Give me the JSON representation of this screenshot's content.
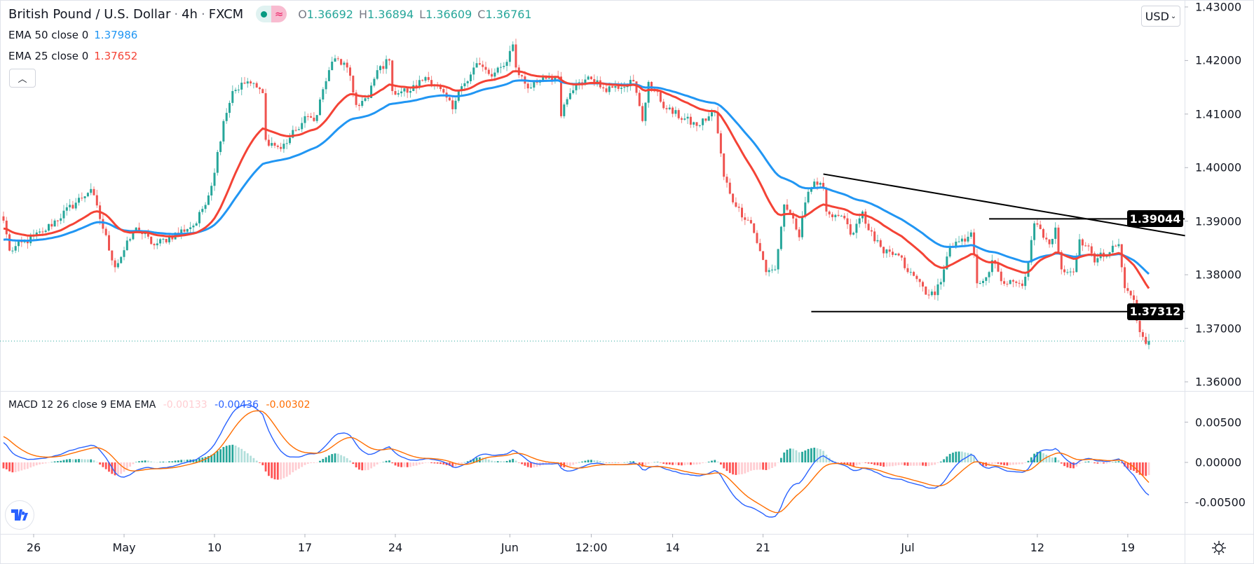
{
  "header": {
    "symbol": "British Pound / U.S. Dollar",
    "interval": "4h",
    "exchange": "FXCM",
    "ohlc": {
      "o_label": "O",
      "o": "1.36692",
      "h_label": "H",
      "h": "1.36894",
      "l_label": "L",
      "l": "1.36609",
      "c_label": "C",
      "c": "1.36761"
    }
  },
  "indicators": {
    "ema50": {
      "label": "EMA 50 close 0",
      "value": "1.37986",
      "color": "#2196f3"
    },
    "ema25": {
      "label": "EMA 25 close 0",
      "value": "1.37652",
      "color": "#f44336"
    },
    "macd": {
      "label": "MACD 12 26 close 9 EMA EMA",
      "hist": "-0.00133",
      "macd": "-0.00436",
      "signal": "-0.00302",
      "hist_color": "#ffcdd2",
      "macd_color": "#2962ff",
      "signal_color": "#ff6d00"
    }
  },
  "colors": {
    "up": "#26a69a",
    "down": "#ef5350",
    "hist_up": "#26a69a",
    "hist_up_fade": "#b2dfdb",
    "hist_dn": "#ff5252",
    "hist_dn_fade": "#ffcdd2"
  },
  "price_axis": {
    "currency": "USD",
    "labels": [
      "1.43000",
      "1.42000",
      "1.41000",
      "1.40000",
      "1.39000",
      "1.38000",
      "1.37000",
      "1.36000"
    ]
  },
  "macd_axis": {
    "labels": [
      "0.00500",
      "0.00000",
      "-0.00500"
    ]
  },
  "chart_data": {
    "type": "candlestick",
    "title": "British Pound / U.S. Dollar · 4h · FXCM",
    "ylim": [
      1.3583,
      1.4313
    ],
    "macd_ylim": [
      -0.0087,
      0.0087
    ],
    "bars": 381,
    "close_waypoints": [
      [
        0,
        1.3901
      ],
      [
        2,
        1.3845
      ],
      [
        13,
        1.388
      ],
      [
        29,
        1.396
      ],
      [
        37,
        1.3814
      ],
      [
        44,
        1.3888
      ],
      [
        50,
        1.3855
      ],
      [
        64,
        1.3896
      ],
      [
        69,
        1.3966
      ],
      [
        73,
        1.4087
      ],
      [
        76,
        1.4143
      ],
      [
        81,
        1.4161
      ],
      [
        86,
        1.4139
      ],
      [
        87,
        1.4052
      ],
      [
        92,
        1.4035
      ],
      [
        97,
        1.407
      ],
      [
        101,
        1.4096
      ],
      [
        103,
        1.4087
      ],
      [
        108,
        1.4182
      ],
      [
        110,
        1.4204
      ],
      [
        114,
        1.4187
      ],
      [
        117,
        1.4117
      ],
      [
        121,
        1.413
      ],
      [
        124,
        1.4182
      ],
      [
        128,
        1.42
      ],
      [
        129,
        1.4143
      ],
      [
        135,
        1.4143
      ],
      [
        140,
        1.4169
      ],
      [
        144,
        1.4152
      ],
      [
        149,
        1.4109
      ],
      [
        152,
        1.4152
      ],
      [
        157,
        1.4195
      ],
      [
        162,
        1.417
      ],
      [
        166,
        1.419
      ],
      [
        169,
        1.423
      ],
      [
        170,
        1.4187
      ],
      [
        174,
        1.4148
      ],
      [
        179,
        1.417
      ],
      [
        184,
        1.417
      ],
      [
        185,
        1.4096
      ],
      [
        188,
        1.4139
      ],
      [
        194,
        1.417
      ],
      [
        199,
        1.4148
      ],
      [
        203,
        1.4152
      ],
      [
        209,
        1.4161
      ],
      [
        212,
        1.4087
      ],
      [
        214,
        1.416
      ],
      [
        220,
        1.4109
      ],
      [
        230,
        1.4078
      ],
      [
        236,
        1.4104
      ],
      [
        239,
        1.3983
      ],
      [
        243,
        1.3927
      ],
      [
        248,
        1.3896
      ],
      [
        251,
        1.3844
      ],
      [
        253,
        1.3805
      ],
      [
        256,
        1.381
      ],
      [
        259,
        1.3931
      ],
      [
        262,
        1.3905
      ],
      [
        264,
        1.387
      ],
      [
        266,
        1.3935
      ],
      [
        269,
        1.3974
      ],
      [
        272,
        1.3961
      ],
      [
        273,
        1.3918
      ],
      [
        278,
        1.391
      ],
      [
        281,
        1.3875
      ],
      [
        285,
        1.3918
      ],
      [
        287,
        1.3883
      ],
      [
        292,
        1.384
      ],
      [
        297,
        1.3836
      ],
      [
        300,
        1.3805
      ],
      [
        303,
        1.3792
      ],
      [
        307,
        1.3762
      ],
      [
        309,
        1.3762
      ],
      [
        312,
        1.381
      ],
      [
        314,
        1.3853
      ],
      [
        319,
        1.3862
      ],
      [
        321,
        1.3879
      ],
      [
        323,
        1.3784
      ],
      [
        327,
        1.3805
      ],
      [
        328,
        1.3827
      ],
      [
        331,
        1.3788
      ],
      [
        338,
        1.3779
      ],
      [
        340,
        1.3823
      ],
      [
        342,
        1.3896
      ],
      [
        346,
        1.3866
      ],
      [
        347,
        1.3857
      ],
      [
        349,
        1.3888
      ],
      [
        351,
        1.381
      ],
      [
        355,
        1.3805
      ],
      [
        357,
        1.3866
      ],
      [
        360,
        1.3853
      ],
      [
        362,
        1.3823
      ],
      [
        363,
        1.3831
      ],
      [
        370,
        1.3857
      ],
      [
        371,
        1.3814
      ],
      [
        372,
        1.3775
      ],
      [
        375,
        1.3753
      ],
      [
        376,
        1.3714
      ],
      [
        378,
        1.3684
      ],
      [
        379,
        1.3671
      ],
      [
        380,
        1.36761
      ]
    ],
    "last_bar": {
      "open": 1.36692,
      "high": 1.36894,
      "low": 1.36609,
      "close": 1.36761
    },
    "ema_seed": {
      "ema50": 1.3864,
      "ema25": 1.3885,
      "ema12": 1.3893,
      "ema26": 1.3867,
      "signal": 0.0034
    },
    "time_labels": [
      {
        "bar": 10,
        "text": "26"
      },
      {
        "bar": 40,
        "text": "May"
      },
      {
        "bar": 70,
        "text": "10"
      },
      {
        "bar": 100,
        "text": "17"
      },
      {
        "bar": 130,
        "text": "24"
      },
      {
        "bar": 168,
        "text": "Jun"
      },
      {
        "bar": 195,
        "text": "12:00"
      },
      {
        "bar": 222,
        "text": "14"
      },
      {
        "bar": 252,
        "text": "21"
      },
      {
        "bar": 300,
        "text": "Jul"
      },
      {
        "bar": 343,
        "text": "12"
      },
      {
        "bar": 373,
        "text": "19"
      }
    ],
    "drawings": {
      "trendline": {
        "from": [
          272,
          1.3988
        ],
        "to": [
          392,
          1.3873
        ]
      },
      "resistance": {
        "from_bar": 327,
        "price": 1.39044,
        "label": "1.39044"
      },
      "support": {
        "from_bar": 268,
        "price": 1.37312,
        "label": "1.37312"
      }
    }
  }
}
